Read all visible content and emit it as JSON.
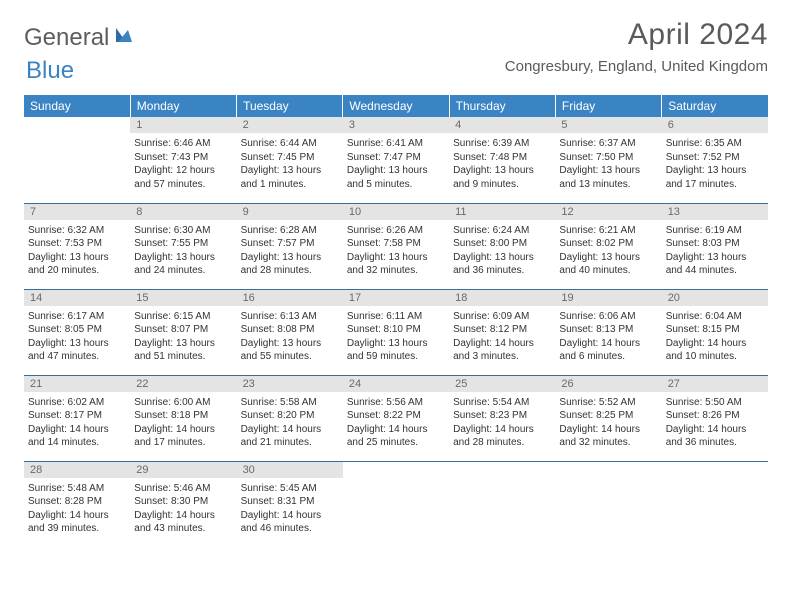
{
  "logo": {
    "text1": "General",
    "text2": "Blue"
  },
  "title": "April 2024",
  "location": "Congresbury, England, United Kingdom",
  "colors": {
    "header_bg": "#3a84c4",
    "header_text": "#ffffff",
    "daynum_bg": "#e4e4e4",
    "daynum_text": "#6a6a6a",
    "row_border": "#3a6c9a",
    "body_text": "#333333",
    "logo_gray": "#5d5d5d",
    "logo_blue": "#3a84c4"
  },
  "day_headers": [
    "Sunday",
    "Monday",
    "Tuesday",
    "Wednesday",
    "Thursday",
    "Friday",
    "Saturday"
  ],
  "weeks": [
    [
      null,
      {
        "n": "1",
        "sr": "Sunrise: 6:46 AM",
        "ss": "Sunset: 7:43 PM",
        "d1": "Daylight: 12 hours",
        "d2": "and 57 minutes."
      },
      {
        "n": "2",
        "sr": "Sunrise: 6:44 AM",
        "ss": "Sunset: 7:45 PM",
        "d1": "Daylight: 13 hours",
        "d2": "and 1 minutes."
      },
      {
        "n": "3",
        "sr": "Sunrise: 6:41 AM",
        "ss": "Sunset: 7:47 PM",
        "d1": "Daylight: 13 hours",
        "d2": "and 5 minutes."
      },
      {
        "n": "4",
        "sr": "Sunrise: 6:39 AM",
        "ss": "Sunset: 7:48 PM",
        "d1": "Daylight: 13 hours",
        "d2": "and 9 minutes."
      },
      {
        "n": "5",
        "sr": "Sunrise: 6:37 AM",
        "ss": "Sunset: 7:50 PM",
        "d1": "Daylight: 13 hours",
        "d2": "and 13 minutes."
      },
      {
        "n": "6",
        "sr": "Sunrise: 6:35 AM",
        "ss": "Sunset: 7:52 PM",
        "d1": "Daylight: 13 hours",
        "d2": "and 17 minutes."
      }
    ],
    [
      {
        "n": "7",
        "sr": "Sunrise: 6:32 AM",
        "ss": "Sunset: 7:53 PM",
        "d1": "Daylight: 13 hours",
        "d2": "and 20 minutes."
      },
      {
        "n": "8",
        "sr": "Sunrise: 6:30 AM",
        "ss": "Sunset: 7:55 PM",
        "d1": "Daylight: 13 hours",
        "d2": "and 24 minutes."
      },
      {
        "n": "9",
        "sr": "Sunrise: 6:28 AM",
        "ss": "Sunset: 7:57 PM",
        "d1": "Daylight: 13 hours",
        "d2": "and 28 minutes."
      },
      {
        "n": "10",
        "sr": "Sunrise: 6:26 AM",
        "ss": "Sunset: 7:58 PM",
        "d1": "Daylight: 13 hours",
        "d2": "and 32 minutes."
      },
      {
        "n": "11",
        "sr": "Sunrise: 6:24 AM",
        "ss": "Sunset: 8:00 PM",
        "d1": "Daylight: 13 hours",
        "d2": "and 36 minutes."
      },
      {
        "n": "12",
        "sr": "Sunrise: 6:21 AM",
        "ss": "Sunset: 8:02 PM",
        "d1": "Daylight: 13 hours",
        "d2": "and 40 minutes."
      },
      {
        "n": "13",
        "sr": "Sunrise: 6:19 AM",
        "ss": "Sunset: 8:03 PM",
        "d1": "Daylight: 13 hours",
        "d2": "and 44 minutes."
      }
    ],
    [
      {
        "n": "14",
        "sr": "Sunrise: 6:17 AM",
        "ss": "Sunset: 8:05 PM",
        "d1": "Daylight: 13 hours",
        "d2": "and 47 minutes."
      },
      {
        "n": "15",
        "sr": "Sunrise: 6:15 AM",
        "ss": "Sunset: 8:07 PM",
        "d1": "Daylight: 13 hours",
        "d2": "and 51 minutes."
      },
      {
        "n": "16",
        "sr": "Sunrise: 6:13 AM",
        "ss": "Sunset: 8:08 PM",
        "d1": "Daylight: 13 hours",
        "d2": "and 55 minutes."
      },
      {
        "n": "17",
        "sr": "Sunrise: 6:11 AM",
        "ss": "Sunset: 8:10 PM",
        "d1": "Daylight: 13 hours",
        "d2": "and 59 minutes."
      },
      {
        "n": "18",
        "sr": "Sunrise: 6:09 AM",
        "ss": "Sunset: 8:12 PM",
        "d1": "Daylight: 14 hours",
        "d2": "and 3 minutes."
      },
      {
        "n": "19",
        "sr": "Sunrise: 6:06 AM",
        "ss": "Sunset: 8:13 PM",
        "d1": "Daylight: 14 hours",
        "d2": "and 6 minutes."
      },
      {
        "n": "20",
        "sr": "Sunrise: 6:04 AM",
        "ss": "Sunset: 8:15 PM",
        "d1": "Daylight: 14 hours",
        "d2": "and 10 minutes."
      }
    ],
    [
      {
        "n": "21",
        "sr": "Sunrise: 6:02 AM",
        "ss": "Sunset: 8:17 PM",
        "d1": "Daylight: 14 hours",
        "d2": "and 14 minutes."
      },
      {
        "n": "22",
        "sr": "Sunrise: 6:00 AM",
        "ss": "Sunset: 8:18 PM",
        "d1": "Daylight: 14 hours",
        "d2": "and 17 minutes."
      },
      {
        "n": "23",
        "sr": "Sunrise: 5:58 AM",
        "ss": "Sunset: 8:20 PM",
        "d1": "Daylight: 14 hours",
        "d2": "and 21 minutes."
      },
      {
        "n": "24",
        "sr": "Sunrise: 5:56 AM",
        "ss": "Sunset: 8:22 PM",
        "d1": "Daylight: 14 hours",
        "d2": "and 25 minutes."
      },
      {
        "n": "25",
        "sr": "Sunrise: 5:54 AM",
        "ss": "Sunset: 8:23 PM",
        "d1": "Daylight: 14 hours",
        "d2": "and 28 minutes."
      },
      {
        "n": "26",
        "sr": "Sunrise: 5:52 AM",
        "ss": "Sunset: 8:25 PM",
        "d1": "Daylight: 14 hours",
        "d2": "and 32 minutes."
      },
      {
        "n": "27",
        "sr": "Sunrise: 5:50 AM",
        "ss": "Sunset: 8:26 PM",
        "d1": "Daylight: 14 hours",
        "d2": "and 36 minutes."
      }
    ],
    [
      {
        "n": "28",
        "sr": "Sunrise: 5:48 AM",
        "ss": "Sunset: 8:28 PM",
        "d1": "Daylight: 14 hours",
        "d2": "and 39 minutes."
      },
      {
        "n": "29",
        "sr": "Sunrise: 5:46 AM",
        "ss": "Sunset: 8:30 PM",
        "d1": "Daylight: 14 hours",
        "d2": "and 43 minutes."
      },
      {
        "n": "30",
        "sr": "Sunrise: 5:45 AM",
        "ss": "Sunset: 8:31 PM",
        "d1": "Daylight: 14 hours",
        "d2": "and 46 minutes."
      },
      null,
      null,
      null,
      null
    ]
  ]
}
